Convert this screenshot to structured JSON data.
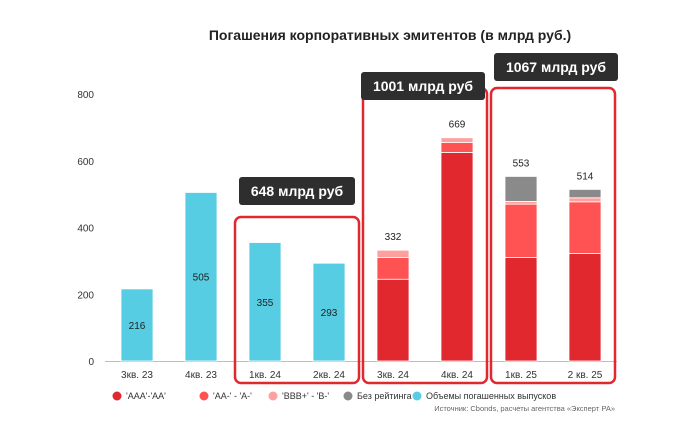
{
  "chart_data": {
    "type": "bar",
    "title": "Погашения корпоративных эмитентов (в млрд руб.)",
    "ylim": [
      0,
      800
    ],
    "yticks": [
      0,
      200,
      400,
      600,
      800
    ],
    "categories": [
      "3кв. 23",
      "4кв. 23",
      "1кв. 24",
      "2кв. 24",
      "3кв. 24",
      "4кв. 24",
      "1кв. 25",
      "2 кв. 25"
    ],
    "totals": [
      216,
      505,
      355,
      293,
      332,
      669,
      553,
      514
    ],
    "series": [
      {
        "name": "'AAA'-'AA'",
        "color": "#e0282e",
        "values": [
          0,
          0,
          0,
          0,
          245,
          625,
          310,
          322
        ]
      },
      {
        "name": "'AA-' - 'A-'",
        "color": "#ff5252",
        "values": [
          0,
          0,
          0,
          0,
          65,
          30,
          160,
          155
        ]
      },
      {
        "name": "'BBB+' - 'B-'",
        "color": "#ffa0a0",
        "values": [
          0,
          0,
          0,
          0,
          22,
          14,
          8,
          12
        ]
      },
      {
        "name": "Без рейтинга",
        "color": "#8a8a8a",
        "values": [
          0,
          0,
          0,
          0,
          0,
          0,
          75,
          25
        ]
      },
      {
        "name": "Объемы погашенных выпусков",
        "color": "#56cde2",
        "values": [
          216,
          505,
          355,
          293,
          0,
          0,
          0,
          0
        ]
      }
    ],
    "inside_labels": [
      "216",
      "505",
      "355",
      "293"
    ],
    "top_labels": [
      "332",
      "669",
      "553",
      "514"
    ],
    "annotations": [
      {
        "text": "648 млрд руб",
        "from": 2,
        "to": 3
      },
      {
        "text": "1001 млрд руб",
        "from": 4,
        "to": 5
      },
      {
        "text": "1067 млрд руб",
        "from": 6,
        "to": 7
      }
    ],
    "source": "Источник: Cbonds, расчеты агентства «Эксперт РА»"
  }
}
